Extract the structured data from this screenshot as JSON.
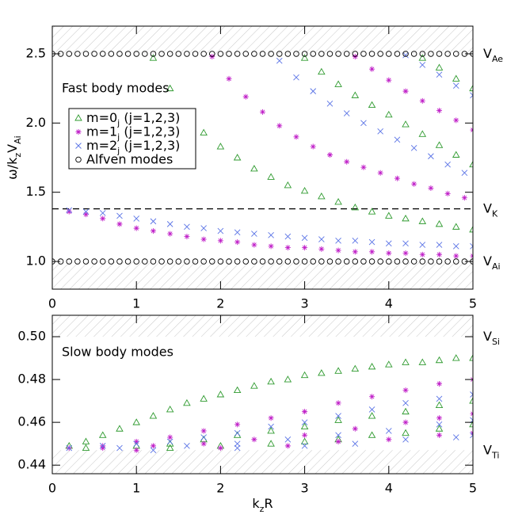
{
  "chart_data": [
    {
      "type": "scatter",
      "ylabel": [
        {
          "text": "ω/k"
        },
        {
          "text": "z",
          "sub": true
        },
        {
          "text": "V"
        },
        {
          "text": "Ai",
          "sub": true
        }
      ],
      "annotation": "Fast body modes",
      "xlim": [
        0,
        5
      ],
      "xticks": [
        0,
        1,
        2,
        3,
        4,
        5
      ],
      "ylim": [
        0.8,
        2.7
      ],
      "yticks": [
        {
          "value": 1.0,
          "label": "1.0"
        },
        {
          "value": 1.5,
          "label": "1.5"
        },
        {
          "value": 2.0,
          "label": "2.0"
        },
        {
          "value": 2.5,
          "label": "2.5"
        }
      ],
      "legend": "upper left",
      "levels": [
        {
          "value": 2.5,
          "label": [
            {
              "text": "V"
            },
            {
              "text": "Ae",
              "sub": true
            }
          ],
          "hatch": "above"
        },
        {
          "value": 1.38,
          "label": [
            {
              "text": "V"
            },
            {
              "text": "K",
              "sub": true
            }
          ],
          "dashed": true
        },
        {
          "value": 1.0,
          "label": [
            {
              "text": "V"
            },
            {
              "text": "Ai",
              "sub": true
            }
          ],
          "hatch": "below"
        }
      ],
      "series": [
        {
          "name": [
            {
              "text": "m=0"
            },
            {
              "text": "j",
              "sub": true
            },
            {
              "text": " (j=1,2,3)"
            }
          ],
          "color": "#2e9a2e",
          "marker": "triangle",
          "x": [
            1.2,
            1.4,
            1.6,
            1.8,
            2.0,
            2.2,
            2.4,
            2.6,
            2.8,
            3.0,
            3.2,
            3.4,
            3.6,
            3.8,
            4.0,
            4.2,
            4.4,
            4.6,
            4.8,
            5.0,
            3.0,
            3.2,
            3.4,
            3.6,
            3.8,
            4.0,
            4.2,
            4.4,
            4.6,
            4.8,
            5.0,
            4.4,
            4.6,
            4.8,
            5.0
          ],
          "values": [
            2.47,
            2.25,
            2.06,
            1.93,
            1.83,
            1.75,
            1.67,
            1.61,
            1.55,
            1.51,
            1.47,
            1.43,
            1.39,
            1.36,
            1.33,
            1.31,
            1.29,
            1.27,
            1.25,
            1.23,
            2.47,
            2.37,
            2.28,
            2.2,
            2.13,
            2.06,
            1.99,
            1.92,
            1.84,
            1.77,
            1.7,
            2.47,
            2.4,
            2.32,
            2.25
          ]
        },
        {
          "name": [
            {
              "text": "m=1"
            },
            {
              "text": "j",
              "sub": true
            },
            {
              "text": " (j=1,2,3)"
            }
          ],
          "color": "#c020c8",
          "marker": "star",
          "x": [
            0.2,
            0.4,
            0.6,
            0.8,
            1.0,
            1.2,
            1.4,
            1.6,
            1.8,
            2.0,
            2.2,
            2.4,
            2.6,
            2.8,
            3.0,
            3.2,
            3.4,
            3.6,
            3.8,
            4.0,
            4.2,
            4.4,
            4.6,
            4.8,
            5.0,
            1.9,
            2.1,
            2.3,
            2.5,
            2.7,
            2.9,
            3.1,
            3.3,
            3.5,
            3.7,
            3.9,
            4.1,
            4.3,
            4.5,
            4.7,
            4.9,
            3.6,
            3.8,
            4.0,
            4.2,
            4.4,
            4.6,
            4.8,
            5.0
          ],
          "values": [
            1.36,
            1.34,
            1.31,
            1.27,
            1.24,
            1.22,
            1.2,
            1.18,
            1.16,
            1.15,
            1.14,
            1.12,
            1.11,
            1.1,
            1.1,
            1.09,
            1.08,
            1.07,
            1.07,
            1.06,
            1.06,
            1.05,
            1.05,
            1.04,
            1.04,
            2.48,
            2.32,
            2.19,
            2.08,
            1.98,
            1.9,
            1.83,
            1.77,
            1.72,
            1.68,
            1.64,
            1.6,
            1.56,
            1.53,
            1.49,
            1.46,
            2.48,
            2.39,
            2.31,
            2.23,
            2.16,
            2.09,
            2.02,
            1.95
          ]
        },
        {
          "name": [
            {
              "text": "m=2"
            },
            {
              "text": "j",
              "sub": true
            },
            {
              "text": " (j=1,2,3)"
            }
          ],
          "color": "#5b74e6",
          "marker": "cross",
          "x": [
            0.2,
            0.4,
            0.6,
            0.8,
            1.0,
            1.2,
            1.4,
            1.6,
            1.8,
            2.0,
            2.2,
            2.4,
            2.6,
            2.8,
            3.0,
            3.2,
            3.4,
            3.6,
            3.8,
            4.0,
            4.2,
            4.4,
            4.6,
            4.8,
            5.0,
            2.7,
            2.9,
            3.1,
            3.3,
            3.5,
            3.7,
            3.9,
            4.1,
            4.3,
            4.5,
            4.7,
            4.9,
            4.2,
            4.4,
            4.6,
            4.8,
            5.0
          ],
          "values": [
            1.37,
            1.36,
            1.35,
            1.33,
            1.31,
            1.29,
            1.27,
            1.25,
            1.24,
            1.22,
            1.21,
            1.2,
            1.19,
            1.18,
            1.17,
            1.16,
            1.15,
            1.15,
            1.14,
            1.13,
            1.13,
            1.12,
            1.12,
            1.11,
            1.11,
            2.45,
            2.33,
            2.23,
            2.14,
            2.07,
            2.0,
            1.94,
            1.88,
            1.82,
            1.76,
            1.7,
            1.64,
            2.49,
            2.42,
            2.35,
            2.27,
            2.2
          ]
        },
        {
          "name": [
            {
              "text": "Alfven modes"
            }
          ],
          "color": "#000000",
          "marker": "circle",
          "x": [
            0,
            0.1,
            0.2,
            0.3,
            0.4,
            0.5,
            0.6,
            0.7,
            0.8,
            0.9,
            1.0,
            1.1,
            1.2,
            1.3,
            1.4,
            1.5,
            1.6,
            1.7,
            1.8,
            1.9,
            2.0,
            2.1,
            2.2,
            2.3,
            2.4,
            2.5,
            2.6,
            2.7,
            2.8,
            2.9,
            3.0,
            3.1,
            3.2,
            3.3,
            3.4,
            3.5,
            3.6,
            3.7,
            3.8,
            3.9,
            4.0,
            4.1,
            4.2,
            4.3,
            4.4,
            4.5,
            4.6,
            4.7,
            4.8,
            4.9,
            5.0,
            0,
            0.1,
            0.2,
            0.3,
            0.4,
            0.5,
            0.6,
            0.7,
            0.8,
            0.9,
            1.0,
            1.1,
            1.2,
            1.3,
            1.4,
            1.5,
            1.6,
            1.7,
            1.8,
            1.9,
            2.0,
            2.1,
            2.2,
            2.3,
            2.4,
            2.5,
            2.6,
            2.7,
            2.8,
            2.9,
            3.0,
            3.1,
            3.2,
            3.3,
            3.4,
            3.5,
            3.6,
            3.7,
            3.8,
            3.9,
            4.0,
            4.1,
            4.2,
            4.3,
            4.4,
            4.5,
            4.6,
            4.7,
            4.8,
            4.9,
            5.0
          ],
          "values": [
            2.5,
            2.5,
            2.5,
            2.5,
            2.5,
            2.5,
            2.5,
            2.5,
            2.5,
            2.5,
            2.5,
            2.5,
            2.5,
            2.5,
            2.5,
            2.5,
            2.5,
            2.5,
            2.5,
            2.5,
            2.5,
            2.5,
            2.5,
            2.5,
            2.5,
            2.5,
            2.5,
            2.5,
            2.5,
            2.5,
            2.5,
            2.5,
            2.5,
            2.5,
            2.5,
            2.5,
            2.5,
            2.5,
            2.5,
            2.5,
            2.5,
            2.5,
            2.5,
            2.5,
            2.5,
            2.5,
            2.5,
            2.5,
            2.5,
            2.5,
            2.5,
            1.0,
            1.0,
            1.0,
            1.0,
            1.0,
            1.0,
            1.0,
            1.0,
            1.0,
            1.0,
            1.0,
            1.0,
            1.0,
            1.0,
            1.0,
            1.0,
            1.0,
            1.0,
            1.0,
            1.0,
            1.0,
            1.0,
            1.0,
            1.0,
            1.0,
            1.0,
            1.0,
            1.0,
            1.0,
            1.0,
            1.0,
            1.0,
            1.0,
            1.0,
            1.0,
            1.0,
            1.0,
            1.0,
            1.0,
            1.0,
            1.0,
            1.0,
            1.0,
            1.0,
            1.0,
            1.0,
            1.0,
            1.0,
            1.0,
            1.0,
            1.0
          ]
        }
      ]
    },
    {
      "type": "scatter",
      "xlabel": [
        {
          "text": "k"
        },
        {
          "text": "z",
          "sub": true
        },
        {
          "text": "R"
        }
      ],
      "annotation": "Slow body modes",
      "xlim": [
        0,
        5
      ],
      "xticks": [
        0,
        1,
        2,
        3,
        4,
        5
      ],
      "ylim": [
        0.436,
        0.51
      ],
      "yticks": [
        0.44,
        0.46,
        0.48,
        {
          "value": 0.5,
          "label": "0.50"
        }
      ],
      "levels": [
        {
          "value": 0.5,
          "label": [
            {
              "text": "V"
            },
            {
              "text": "Si",
              "sub": true
            }
          ],
          "hatch": "above"
        },
        {
          "value": 0.447,
          "label": [
            {
              "text": "V"
            },
            {
              "text": "Ti",
              "sub": true
            }
          ],
          "hatch": "below"
        }
      ],
      "series": [
        {
          "color": "#2e9a2e",
          "marker": "triangle",
          "x": [
            0.2,
            0.4,
            0.6,
            0.8,
            1.0,
            1.2,
            1.4,
            1.6,
            1.8,
            2.0,
            2.2,
            2.4,
            2.6,
            2.8,
            3.0,
            3.2,
            3.4,
            3.6,
            3.8,
            4.0,
            4.2,
            4.4,
            4.6,
            4.8,
            5.0,
            0.4,
            1.0,
            1.4,
            1.8,
            2.2,
            2.6,
            3.0,
            3.4,
            3.8,
            4.2,
            4.6,
            5.0,
            1.4,
            2.0,
            2.6,
            3.0,
            3.4,
            3.8,
            4.2,
            4.6,
            5.0
          ],
          "values": [
            0.449,
            0.451,
            0.454,
            0.457,
            0.46,
            0.463,
            0.466,
            0.469,
            0.471,
            0.473,
            0.475,
            0.477,
            0.479,
            0.48,
            0.482,
            0.483,
            0.484,
            0.485,
            0.486,
            0.487,
            0.488,
            0.488,
            0.489,
            0.49,
            0.49,
            0.448,
            0.449,
            0.45,
            0.452,
            0.454,
            0.456,
            0.458,
            0.461,
            0.463,
            0.465,
            0.468,
            0.47,
            0.448,
            0.449,
            0.45,
            0.451,
            0.452,
            0.454,
            0.455,
            0.457,
            0.459
          ]
        },
        {
          "color": "#c020c8",
          "marker": "star",
          "x": [
            0.2,
            0.6,
            1.0,
            1.4,
            1.8,
            2.2,
            2.6,
            3.0,
            3.4,
            3.8,
            4.2,
            4.6,
            5.0,
            0.6,
            1.2,
            1.8,
            2.4,
            3.0,
            3.6,
            4.2,
            4.6,
            5.0,
            1.0,
            2.0,
            2.8,
            3.4,
            4.0,
            4.6,
            5.0
          ],
          "values": [
            0.448,
            0.449,
            0.451,
            0.453,
            0.456,
            0.459,
            0.462,
            0.465,
            0.469,
            0.472,
            0.475,
            0.478,
            0.48,
            0.448,
            0.449,
            0.45,
            0.452,
            0.454,
            0.457,
            0.46,
            0.462,
            0.464,
            0.447,
            0.448,
            0.449,
            0.451,
            0.452,
            0.454,
            0.455
          ]
        },
        {
          "color": "#5b74e6",
          "marker": "cross",
          "x": [
            0.2,
            0.6,
            1.0,
            1.4,
            1.8,
            2.2,
            2.6,
            3.0,
            3.4,
            3.8,
            4.2,
            4.6,
            5.0,
            0.8,
            1.6,
            2.2,
            2.8,
            3.4,
            4.0,
            4.6,
            5.0,
            1.2,
            2.2,
            3.0,
            3.6,
            4.2,
            4.8,
            5.0
          ],
          "values": [
            0.448,
            0.449,
            0.45,
            0.451,
            0.453,
            0.455,
            0.458,
            0.46,
            0.463,
            0.466,
            0.469,
            0.471,
            0.473,
            0.448,
            0.449,
            0.45,
            0.452,
            0.454,
            0.456,
            0.459,
            0.461,
            0.447,
            0.448,
            0.449,
            0.45,
            0.452,
            0.453,
            0.454
          ]
        }
      ]
    }
  ]
}
